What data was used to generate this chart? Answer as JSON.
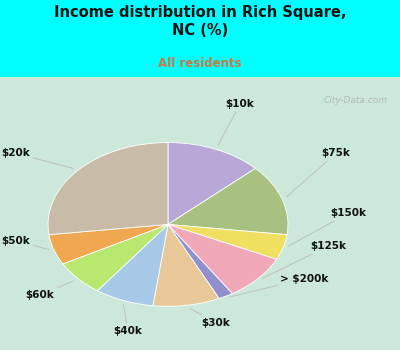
{
  "title": "Income distribution in Rich Square,\nNC (%)",
  "subtitle": "All residents",
  "title_color": "#111111",
  "subtitle_color": "#cc7744",
  "bg_top": "#00ffff",
  "bg_chart_color": "#d4ede0",
  "labels": [
    "$10k",
    "$75k",
    "$150k",
    "$125k",
    "> $200k",
    "$30k",
    "$40k",
    "$60k",
    "$50k",
    "$20k"
  ],
  "sizes": [
    13,
    14,
    5,
    9,
    2,
    9,
    8,
    7,
    6,
    27
  ],
  "colors": [
    "#b8a8d8",
    "#a8c080",
    "#f0e060",
    "#f0a8b8",
    "#9090cc",
    "#e8c898",
    "#a8c8e8",
    "#b8e870",
    "#f0a850",
    "#c8bca8"
  ],
  "startangle": 90,
  "label_fontsize": 7.5,
  "label_color": "#111111",
  "watermark": "City-Data.com"
}
